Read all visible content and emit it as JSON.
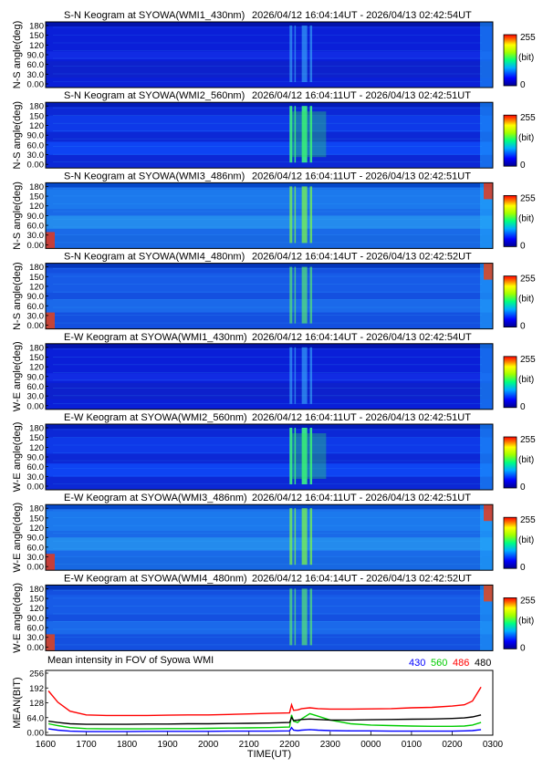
{
  "chart_data": [
    {
      "type": "heatmap",
      "title": "S-N Keogram at SYOWA(WMI1_430nm)",
      "time_range": "2026/04/12 16:04:14UT - 2026/04/13 02:42:54UT",
      "ylabel": "N-S angle(deg)",
      "yticks": [
        "180",
        "150",
        "120",
        "90.0",
        "60.0",
        "30.0",
        "0.00"
      ],
      "colorbar": {
        "max": "255",
        "unit": "(bit)",
        "min": "0"
      },
      "profile": "dim"
    },
    {
      "type": "heatmap",
      "title": "S-N Keogram at SYOWA(WMI2_560nm)",
      "time_range": "2026/04/12 16:04:11UT - 2026/04/13 02:42:51UT",
      "ylabel": "N-S angle(deg)",
      "yticks": [
        "180",
        "150",
        "120",
        "90.0",
        "60.0",
        "30.0",
        "0.00"
      ],
      "colorbar": {
        "max": "255",
        "unit": "(bit)",
        "min": "0"
      },
      "profile": "green"
    },
    {
      "type": "heatmap",
      "title": "S-N Keogram at SYOWA(WMI3_486nm)",
      "time_range": "2026/04/12 16:04:11UT - 2026/04/13 02:42:51UT",
      "ylabel": "N-S angle(deg)",
      "yticks": [
        "180",
        "150",
        "120",
        "90.0",
        "60.0",
        "30.0",
        "0.00"
      ],
      "colorbar": {
        "max": "255",
        "unit": "(bit)",
        "min": "0"
      },
      "profile": "bright"
    },
    {
      "type": "heatmap",
      "title": "S-N Keogram at SYOWA(WMI4_480nm)",
      "time_range": "2026/04/12 16:04:14UT - 2026/04/13 02:42:52UT",
      "ylabel": "N-S angle(deg)",
      "yticks": [
        "180",
        "150",
        "120",
        "90.0",
        "60.0",
        "30.0",
        "0.00"
      ],
      "colorbar": {
        "max": "255",
        "unit": "(bit)",
        "min": "0"
      },
      "profile": "mid"
    },
    {
      "type": "heatmap",
      "title": "E-W Keogram at SYOWA(WMI1_430nm)",
      "time_range": "2026/04/12 16:04:14UT - 2026/04/13 02:42:54UT",
      "ylabel": "W-E angle(deg)",
      "yticks": [
        "180",
        "150",
        "120",
        "90.0",
        "60.0",
        "30.0",
        "0.00"
      ],
      "colorbar": {
        "max": "255",
        "unit": "(bit)",
        "min": "0"
      },
      "profile": "dim"
    },
    {
      "type": "heatmap",
      "title": "E-W Keogram at SYOWA(WMI2_560nm)",
      "time_range": "2026/04/12 16:04:11UT - 2026/04/13 02:42:51UT",
      "ylabel": "W-E angle(deg)",
      "yticks": [
        "180",
        "150",
        "120",
        "90.0",
        "60.0",
        "30.0",
        "0.00"
      ],
      "colorbar": {
        "max": "255",
        "unit": "(bit)",
        "min": "0"
      },
      "profile": "green"
    },
    {
      "type": "heatmap",
      "title": "E-W Keogram at SYOWA(WMI3_486nm)",
      "time_range": "2026/04/12 16:04:11UT - 2026/04/13 02:42:51UT",
      "ylabel": "W-E angle(deg)",
      "yticks": [
        "180",
        "150",
        "120",
        "90.0",
        "60.0",
        "30.0",
        "0.00"
      ],
      "colorbar": {
        "max": "255",
        "unit": "(bit)",
        "min": "0"
      },
      "profile": "bright"
    },
    {
      "type": "heatmap",
      "title": "E-W Keogram at SYOWA(WMI4_480nm)",
      "time_range": "2026/04/12 16:04:14UT - 2026/04/13 02:42:52UT",
      "ylabel": "W-E angle(deg)",
      "yticks": [
        "180",
        "150",
        "120",
        "90.0",
        "60.0",
        "30.0",
        "0.00"
      ],
      "colorbar": {
        "max": "255",
        "unit": "(bit)",
        "min": "0"
      },
      "profile": "mid"
    },
    {
      "type": "line",
      "title": "Mean intensity in FOV of Syowa WMI",
      "ylabel": "MEAN(BIT)",
      "xlabel": "TIME(UT)",
      "ylim": [
        0,
        256
      ],
      "yticks": [
        "256",
        "192",
        "128",
        "64.0",
        "0.00"
      ],
      "xticks": [
        "1600",
        "1700",
        "1800",
        "1900",
        "2000",
        "2100",
        "2200",
        "2300",
        "0000",
        "0100",
        "0200",
        "0300"
      ],
      "xlim": [
        16.0,
        27.0
      ],
      "x": [
        16.07,
        16.3,
        16.6,
        17.0,
        17.5,
        18.0,
        18.5,
        19.0,
        19.5,
        20.0,
        20.5,
        21.0,
        21.5,
        22.0,
        22.05,
        22.1,
        22.2,
        22.3,
        22.5,
        22.7,
        23.0,
        23.5,
        24.0,
        24.5,
        25.0,
        25.5,
        26.0,
        26.3,
        26.5,
        26.71
      ],
      "series": [
        {
          "name": "430",
          "color": "#0000ff",
          "values": [
            25,
            20,
            16,
            14,
            14,
            14,
            15,
            15,
            15,
            15,
            16,
            16,
            16,
            17,
            30,
            20,
            18,
            20,
            22,
            20,
            18,
            17,
            17,
            16,
            16,
            16,
            16,
            17,
            18,
            22
          ]
        },
        {
          "name": "560",
          "color": "#00cc00",
          "values": [
            45,
            38,
            30,
            26,
            25,
            25,
            25,
            26,
            26,
            27,
            28,
            29,
            30,
            32,
            80,
            55,
            50,
            65,
            85,
            75,
            60,
            45,
            40,
            38,
            36,
            35,
            35,
            36,
            40,
            50
          ]
        },
        {
          "name": "486",
          "color": "#ff0000",
          "values": [
            175,
            130,
            95,
            80,
            78,
            78,
            78,
            79,
            80,
            80,
            82,
            84,
            86,
            88,
            120,
            98,
            100,
            105,
            108,
            105,
            103,
            103,
            104,
            105,
            108,
            110,
            115,
            120,
            135,
            190
          ]
        },
        {
          "name": "480",
          "color": "#000000",
          "values": [
            55,
            50,
            45,
            43,
            43,
            43,
            44,
            44,
            45,
            45,
            46,
            47,
            48,
            50,
            70,
            58,
            60,
            62,
            64,
            62,
            60,
            60,
            61,
            62,
            63,
            64,
            66,
            68,
            72,
            80
          ]
        }
      ]
    }
  ]
}
